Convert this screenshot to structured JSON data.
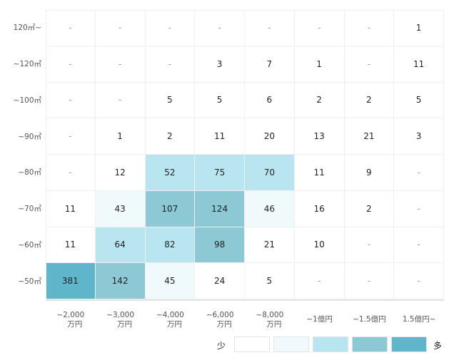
{
  "chart_data": {
    "type": "heatmap",
    "rows": [
      "120㎡~",
      "~120㎡",
      "~100㎡",
      "~90㎡",
      "~80㎡",
      "~70㎡",
      "~60㎡",
      "~50㎡"
    ],
    "columns": [
      [
        "~2,000",
        "万円"
      ],
      [
        "~3,000",
        "万円"
      ],
      [
        "~4,000",
        "万円"
      ],
      [
        "~6,000",
        "万円"
      ],
      [
        "~8,000",
        "万円"
      ],
      [
        "~1億円"
      ],
      [
        "~1.5億円"
      ],
      [
        "1.5億円~"
      ]
    ],
    "values": [
      [
        null,
        null,
        null,
        null,
        null,
        null,
        null,
        1
      ],
      [
        null,
        null,
        null,
        3,
        7,
        1,
        null,
        11
      ],
      [
        null,
        null,
        5,
        5,
        6,
        2,
        2,
        5
      ],
      [
        null,
        1,
        2,
        11,
        20,
        13,
        21,
        3
      ],
      [
        null,
        12,
        52,
        75,
        70,
        11,
        9,
        null
      ],
      [
        11,
        43,
        107,
        124,
        46,
        16,
        2,
        null
      ],
      [
        11,
        64,
        82,
        98,
        21,
        10,
        null,
        null
      ],
      [
        381,
        142,
        45,
        24,
        5,
        null,
        null,
        null
      ]
    ],
    "empty_label": "-",
    "legend": {
      "low_label": "少",
      "high_label": "多",
      "colors": [
        "#ffffff",
        "#f0fafd",
        "#b9e5f0",
        "#8dc8d5",
        "#5fb6cb"
      ]
    }
  }
}
